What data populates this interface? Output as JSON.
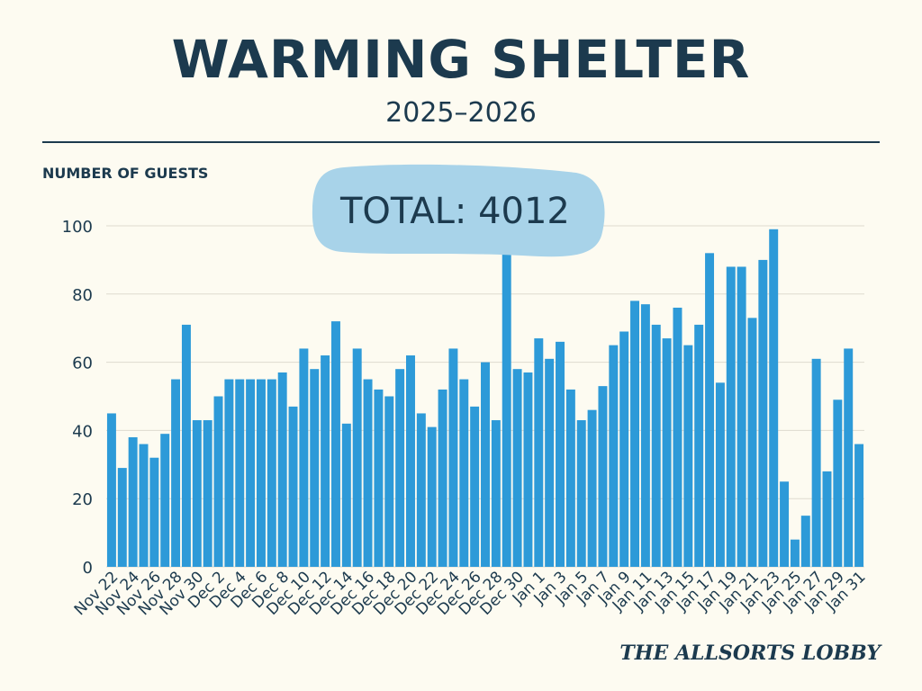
{
  "header": {
    "title": "WARMING SHELTER",
    "subtitle": "2025–2026"
  },
  "footer": {
    "brand": "THE ALLSORTS LOBBY"
  },
  "colors": {
    "bar": "#2d9ad8",
    "total_bubble": "#a8d3e9",
    "ink": "#1c3a4e",
    "grid": "#dedbd0",
    "background": "#fdfbf1"
  },
  "chart_data": {
    "type": "bar",
    "ylabel": "NUMBER OF GUESTS",
    "xlabel": "",
    "ylim": [
      0,
      100
    ],
    "yticks": [
      0,
      20,
      40,
      60,
      80,
      100
    ],
    "grid": true,
    "annotation": "TOTAL: 4012",
    "categories": [
      "Nov 22",
      "Nov 23",
      "Nov 24",
      "Nov 25",
      "Nov 26",
      "Nov 27",
      "Nov 28",
      "Nov 29",
      "Nov 30",
      "Dec 1",
      "Dec 2",
      "Dec 3",
      "Dec 4",
      "Dec 5",
      "Dec 6",
      "Dec 7",
      "Dec 8",
      "Dec 9",
      "Dec 10",
      "Dec 11",
      "Dec 12",
      "Dec 13",
      "Dec 14",
      "Dec 15",
      "Dec 16",
      "Dec 17",
      "Dec 18",
      "Dec 19",
      "Dec 20",
      "Dec 21",
      "Dec 22",
      "Dec 23",
      "Dec 24",
      "Dec 25",
      "Dec 26",
      "Dec 27",
      "Dec 28",
      "Dec 29",
      "Dec 30",
      "Dec 31",
      "Jan 1",
      "Jan 2",
      "Jan 3",
      "Jan 4",
      "Jan 5",
      "Jan 6",
      "Jan 7",
      "Jan 8",
      "Jan 9",
      "Jan 10",
      "Jan 11",
      "Jan 12",
      "Jan 13",
      "Jan 14",
      "Jan 15",
      "Jan 16",
      "Jan 17",
      "Jan 18",
      "Jan 19",
      "Jan 20",
      "Jan 21",
      "Jan 22",
      "Jan 23",
      "Jan 24",
      "Jan 25",
      "Jan 26",
      "Jan 27",
      "Jan 28",
      "Jan 29",
      "Jan 30",
      "Jan 31"
    ],
    "tick_labels": [
      "Nov 22",
      "Nov 24",
      "Nov 26",
      "Nov 28",
      "Nov 30",
      "Dec 2",
      "Dec 4",
      "Dec 6",
      "Dec 8",
      "Dec 10",
      "Dec 12",
      "Dec 14",
      "Dec 16",
      "Dec 18",
      "Dec 20",
      "Dec 22",
      "Dec 24",
      "Dec 26",
      "Dec 28",
      "Dec 30",
      "Jan 1",
      "Jan 3",
      "Jan 5",
      "Jan 7",
      "Jan 9",
      "Jan 11",
      "Jan 13",
      "Jan 15",
      "Jan 17",
      "Jan 19",
      "Jan 21",
      "Jan 23",
      "Jan 25",
      "Jan 27",
      "Jan 29",
      "Jan 31"
    ],
    "series": [
      {
        "name": "Guests",
        "values": [
          45,
          29,
          38,
          36,
          32,
          39,
          55,
          71,
          43,
          43,
          50,
          55,
          55,
          55,
          55,
          55,
          57,
          47,
          64,
          58,
          62,
          72,
          42,
          64,
          55,
          52,
          50,
          58,
          62,
          45,
          41,
          52,
          64,
          55,
          47,
          60,
          43,
          94,
          58,
          57,
          67,
          61,
          66,
          52,
          43,
          46,
          53,
          65,
          69,
          78,
          77,
          71,
          67,
          76,
          65,
          71,
          92,
          54,
          88,
          88,
          73,
          90,
          99,
          25,
          8,
          15,
          61,
          28,
          49,
          64,
          36
        ]
      }
    ]
  }
}
